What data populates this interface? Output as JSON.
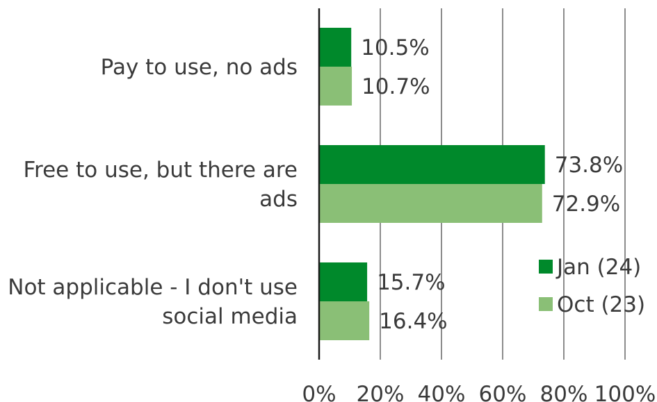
{
  "chart_data": {
    "type": "bar",
    "orientation": "horizontal",
    "categories": [
      [
        "Pay to use, no ads"
      ],
      [
        "Free to use, but there are",
        "ads"
      ],
      [
        "Not applicable - I don't use",
        "social media"
      ]
    ],
    "series": [
      {
        "name": "Jan (24)",
        "color": "#00892b",
        "values": [
          10.5,
          73.8,
          15.7
        ],
        "labels": [
          "10.5%",
          "73.8%",
          "15.7%"
        ]
      },
      {
        "name": "Oct (23)",
        "color": "#8abf76",
        "values": [
          10.7,
          72.9,
          16.4
        ],
        "labels": [
          "10.7%",
          "72.9%",
          "16.4%"
        ]
      }
    ],
    "xlim": [
      0,
      100
    ],
    "ticks": [
      0,
      20,
      40,
      60,
      80,
      100
    ],
    "tick_labels": [
      "0%",
      "20%",
      "40%",
      "60%",
      "80%",
      "100%"
    ],
    "grid": true,
    "legend_position": "bottom-right"
  }
}
